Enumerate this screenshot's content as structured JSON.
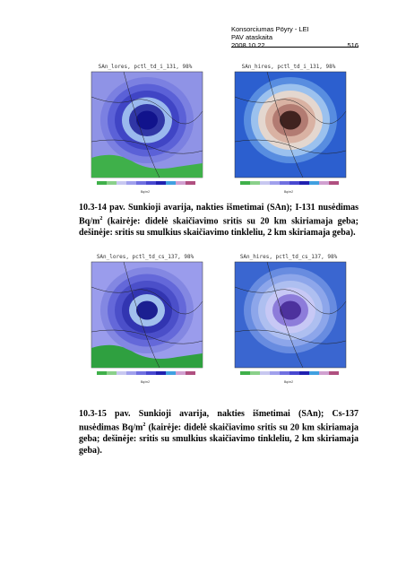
{
  "header": {
    "org": "Konsorciumas Pöyry - LEI",
    "report": "PAV ataskaita",
    "date": "2008 10 22",
    "page": "516"
  },
  "figures": [
    {
      "panels": [
        {
          "title": "SAn_lores, pctl_td_i_131, 98%",
          "unit": "Bq/m2"
        },
        {
          "title": "SAn_hires, pctl_td_i_131, 98%",
          "unit": "Bq/m2"
        }
      ],
      "caption": {
        "label": "10.3-14 pav.",
        "text": "Sunkioji avarija, nakties išmetimai (SAn); I-131 nusėdimas Bq/m",
        "sup": "2",
        "rest": "(kairėje: didelė skaičiavimo sritis su 20 km skiriamaja geba; dešinėje: sritis su smulkius skaičiavimo tinkleliu, 2 km skiriamaja geba)."
      }
    },
    {
      "panels": [
        {
          "title": "SAn_lores, pctl_td_cs_137, 98%",
          "unit": "Bq/m2"
        },
        {
          "title": "SAn_hires, pctl_td_cs_137, 98%",
          "unit": "Bq/m2"
        }
      ],
      "caption": {
        "label": "10.3-15 pav.",
        "text": "Sunkioji avarija, nakties išmetimai (SAn); Cs-137 nusėdimas Bq/m",
        "sup": "2",
        "rest": "(kairėje: didelė skaičiavimo sritis su 20 km skiriamaja geba; dešinėje: sritis su smulkius skaičiavimo tinkleliu, 2 km skiriamaja geba)."
      }
    }
  ]
}
